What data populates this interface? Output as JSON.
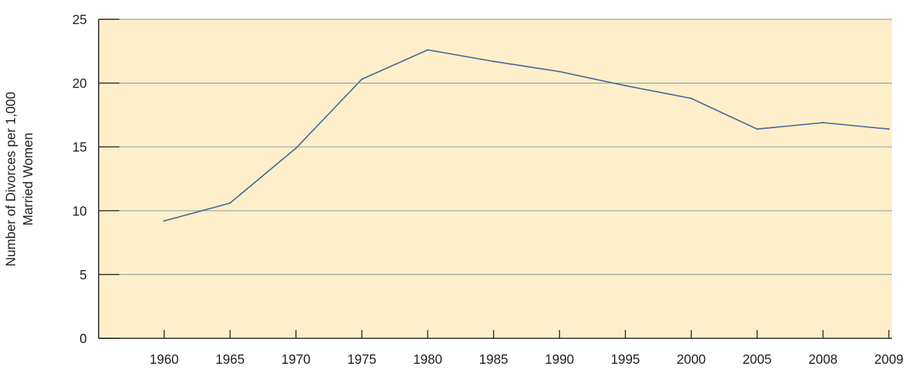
{
  "chart_data": {
    "type": "line",
    "categories": [
      "1960",
      "1965",
      "1970",
      "1975",
      "1980",
      "1985",
      "1990",
      "1995",
      "2000",
      "2005",
      "2008",
      "2009"
    ],
    "series": [
      {
        "values": [
          9.2,
          10.6,
          14.9,
          20.3,
          22.6,
          21.7,
          20.9,
          19.8,
          18.8,
          16.4,
          16.9,
          16.4
        ]
      }
    ],
    "title": "",
    "xlabel": "",
    "ylabel_lines": [
      "Number of Divorces per 1,000",
      "Married Women"
    ],
    "ylim": [
      0,
      25
    ],
    "yticks": [
      "0",
      "5",
      "10",
      "15",
      "20",
      "25"
    ],
    "ytick_values": [
      0,
      5,
      10,
      15,
      20,
      25
    ],
    "grid": true,
    "legend": "none",
    "colors": {
      "plot_background": "#fcefc9",
      "line": "#4a6a9a",
      "gridline": "#9aa0a8",
      "axis": "#231f20"
    }
  }
}
